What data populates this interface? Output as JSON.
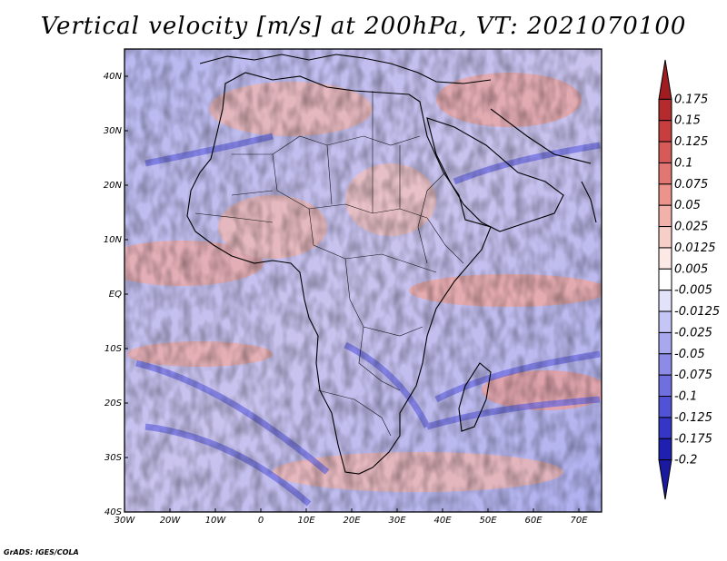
{
  "title": "Vertical velocity [m/s] at 200hPa, VT: 2021070100",
  "footer": "GrADS: IGES/COLA",
  "map": {
    "lon_range": [
      -30,
      75
    ],
    "lat_range": [
      -40,
      45
    ],
    "lon_ticks": [
      "30W",
      "20W",
      "10W",
      "0",
      "10E",
      "20E",
      "30E",
      "40E",
      "50E",
      "60E",
      "70E"
    ],
    "lat_ticks": [
      "40N",
      "30N",
      "20N",
      "10N",
      "EQ",
      "10S",
      "20S",
      "30S",
      "40S"
    ]
  },
  "colorbar": {
    "labels": [
      "0.175",
      "0.15",
      "0.125",
      "0.1",
      "0.075",
      "0.05",
      "0.025",
      "0.0125",
      "0.005",
      "-0.005",
      "-0.0125",
      "-0.025",
      "-0.05",
      "-0.075",
      "-0.1",
      "-0.125",
      "-0.175",
      "-0.2"
    ],
    "colors": [
      "#a01c20",
      "#b42a2d",
      "#c83e3e",
      "#d65b58",
      "#e27772",
      "#ec948c",
      "#f3b2a9",
      "#f8cec8",
      "#fce8e4",
      "#ffffff",
      "#e2e2fb",
      "#c5c5f6",
      "#a8a8ef",
      "#8c8ce8",
      "#6f6fe0",
      "#5252d6",
      "#3535c6",
      "#2020b0",
      "#1a1aa0"
    ]
  }
}
